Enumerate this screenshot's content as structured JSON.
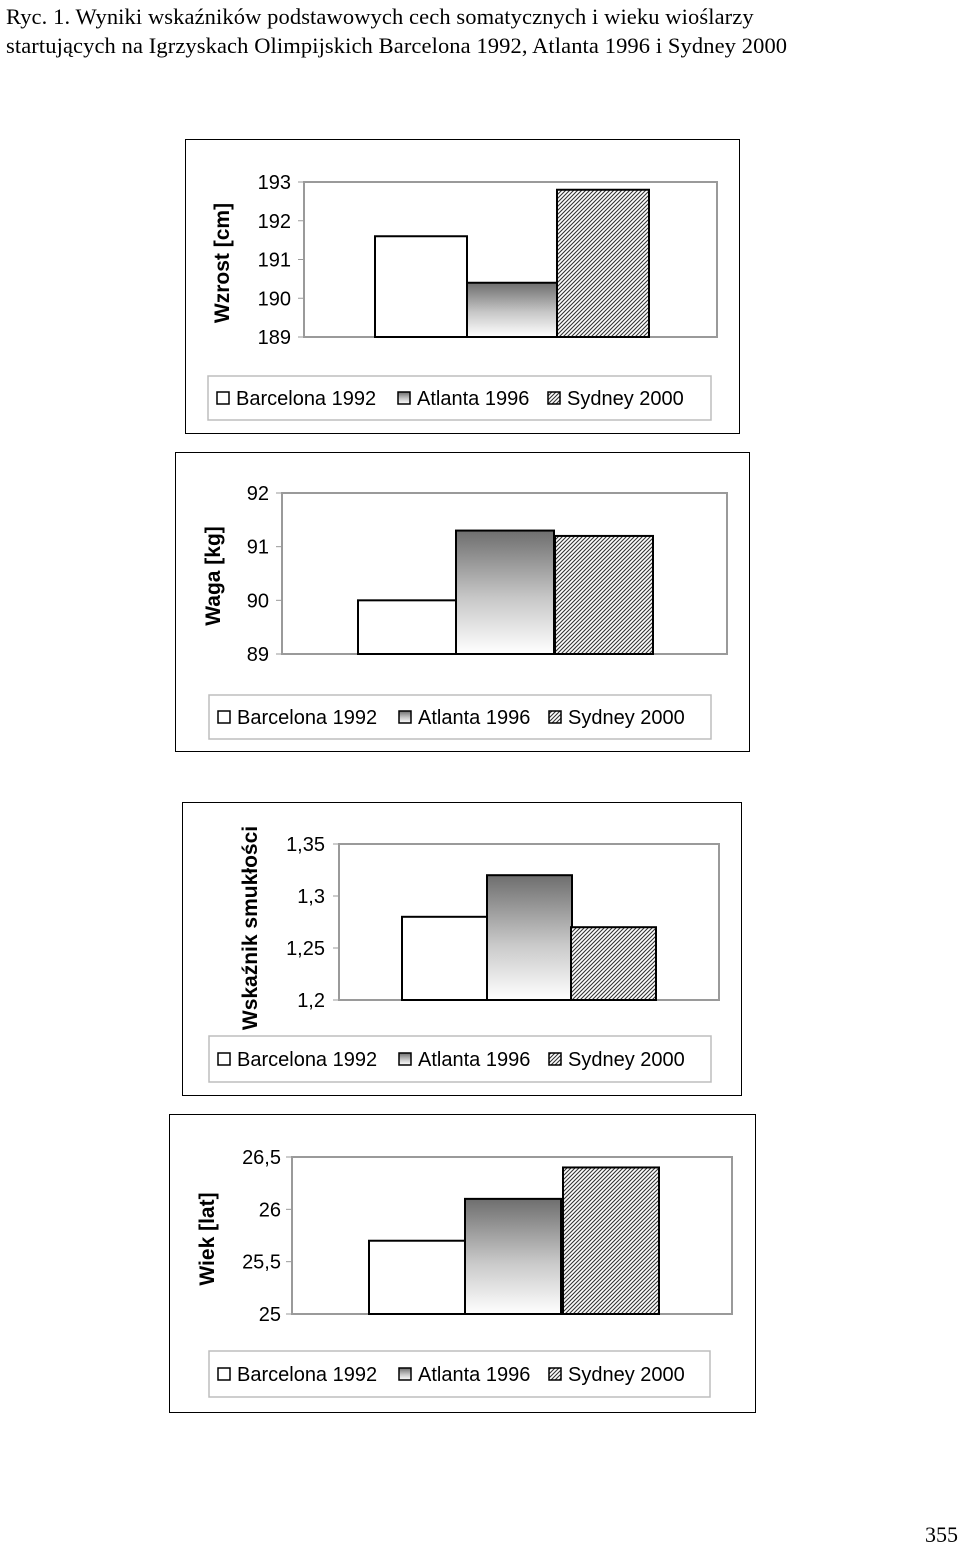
{
  "caption": {
    "line1": "Ryc. 1. Wyniki wskaźników podstawowych cech somatycznych i wieku wioślarzy",
    "line2": "startujących na Igrzyskach Olimpijskich Barcelona 1992, Atlanta 1996 i Sydney 2000"
  },
  "page_number": "355",
  "legend_swatches": {
    "barcelona": "#ffffff",
    "atlanta": "gradient-gray",
    "sydney": "diagonal-hatch"
  },
  "chart_data": [
    {
      "type": "bar",
      "ylabel": "Wzrost [cm]",
      "categories": [
        "Barcelona 1992",
        "Atlanta 1996",
        "Sydney 2000"
      ],
      "values": [
        191.6,
        190.4,
        192.8
      ],
      "ylim": [
        189,
        193
      ],
      "ticks": [
        {
          "v": 189,
          "label": "189"
        },
        {
          "v": 190,
          "label": "190"
        },
        {
          "v": 191,
          "label": "191"
        },
        {
          "v": 192,
          "label": "192"
        },
        {
          "v": 193,
          "label": "193"
        }
      ],
      "legend": [
        "Barcelona 1992",
        "Atlanta 1996",
        "Sydney 2000"
      ],
      "legend_position": "bottom",
      "grid": false
    },
    {
      "type": "bar",
      "ylabel": "Waga [kg]",
      "categories": [
        "Barcelona 1992",
        "Atlanta 1996",
        "Sydney 2000"
      ],
      "values": [
        90.0,
        91.3,
        91.2
      ],
      "ylim": [
        89,
        92
      ],
      "ticks": [
        {
          "v": 89,
          "label": "89"
        },
        {
          "v": 90,
          "label": "90"
        },
        {
          "v": 91,
          "label": "91"
        },
        {
          "v": 92,
          "label": "92"
        }
      ],
      "legend": [
        "Barcelona 1992",
        "Atlanta 1996",
        "Sydney 2000"
      ],
      "legend_position": "bottom",
      "grid": false
    },
    {
      "type": "bar",
      "ylabel": "Wskaźnik smukłości",
      "categories": [
        "Barcelona 1992",
        "Atlanta 1996",
        "Sydney 2000"
      ],
      "values": [
        1.28,
        1.32,
        1.27
      ],
      "ylim": [
        1.2,
        1.35
      ],
      "ticks": [
        {
          "v": 1.2,
          "label": "1,2"
        },
        {
          "v": 1.25,
          "label": "1,25"
        },
        {
          "v": 1.3,
          "label": "1,3"
        },
        {
          "v": 1.35,
          "label": "1,35"
        }
      ],
      "legend": [
        "Barcelona 1992",
        "Atlanta 1996",
        "Sydney 2000"
      ],
      "legend_position": "bottom",
      "grid": false
    },
    {
      "type": "bar",
      "ylabel": "Wiek [lat]",
      "categories": [
        "Barcelona 1992",
        "Atlanta 1996",
        "Sydney 2000"
      ],
      "values": [
        25.7,
        26.1,
        26.4
      ],
      "ylim": [
        25,
        26.5
      ],
      "ticks": [
        {
          "v": 25,
          "label": "25"
        },
        {
          "v": 25.5,
          "label": "25,5"
        },
        {
          "v": 26,
          "label": "26"
        },
        {
          "v": 26.5,
          "label": "26,5"
        }
      ],
      "legend": [
        "Barcelona 1992",
        "Atlanta 1996",
        "Sydney 2000"
      ],
      "legend_position": "bottom",
      "grid": false
    }
  ]
}
